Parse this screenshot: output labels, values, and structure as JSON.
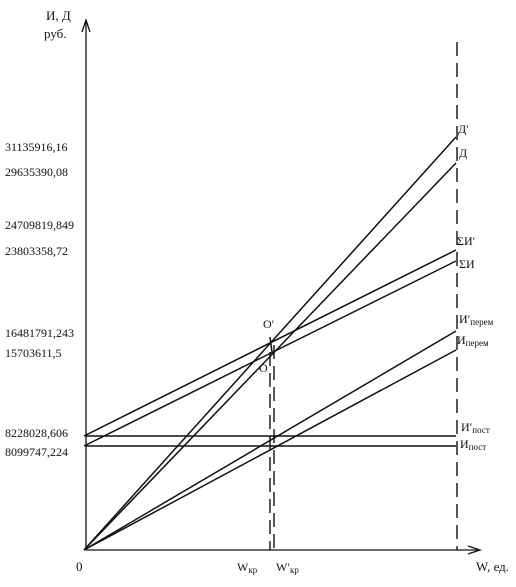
{
  "chart_data": {
    "type": "line",
    "ylabel": "И, Д",
    "yunit": "руб.",
    "xlabel": "W, ед.",
    "origin_label": "0",
    "ytick_values": [
      31135916.16,
      29635390.08,
      24709819.849,
      23803358.72,
      16481791.243,
      15703611.5,
      8228028.606,
      8099747.224
    ],
    "ytick_labels": [
      "31135916,16",
      "29635390,08",
      "24709819,849",
      "23803358,72",
      "16481791,243",
      "15703611,5",
      "8228028,606",
      "8099747,224"
    ],
    "xticks": [
      {
        "base": "W",
        "sub": "кр"
      },
      {
        "base": "W′",
        "sub": "кр"
      }
    ],
    "points": [
      {
        "name": "O′"
      },
      {
        "name": "O"
      }
    ],
    "series": [
      {
        "name": "Д′",
        "x": [
          "0",
          "W"
        ],
        "values": [
          0,
          31135916.16
        ]
      },
      {
        "name": "Д",
        "x": [
          "0",
          "W"
        ],
        "values": [
          0,
          29635390.08
        ]
      },
      {
        "name": "ΣИ′",
        "x": [
          "0",
          "W"
        ],
        "values": [
          8228028.606,
          24709819.849
        ]
      },
      {
        "name": "ΣИ",
        "x": [
          "0",
          "W"
        ],
        "values": [
          8099747.224,
          23803358.72
        ]
      },
      {
        "name": "И′",
        "sub": "перем",
        "x": [
          "0",
          "W"
        ],
        "values": [
          0,
          16481791.243
        ]
      },
      {
        "name": "И",
        "sub": "перем",
        "x": [
          "0",
          "W"
        ],
        "values": [
          0,
          15703611.5
        ]
      },
      {
        "name": "И′",
        "sub": "пост",
        "x": [
          "0",
          "W"
        ],
        "values": [
          8228028.606,
          8228028.606
        ]
      },
      {
        "name": "И",
        "sub": "пост",
        "x": [
          "0",
          "W"
        ],
        "values": [
          8099747.224,
          8099747.224
        ]
      }
    ],
    "grid": false
  }
}
